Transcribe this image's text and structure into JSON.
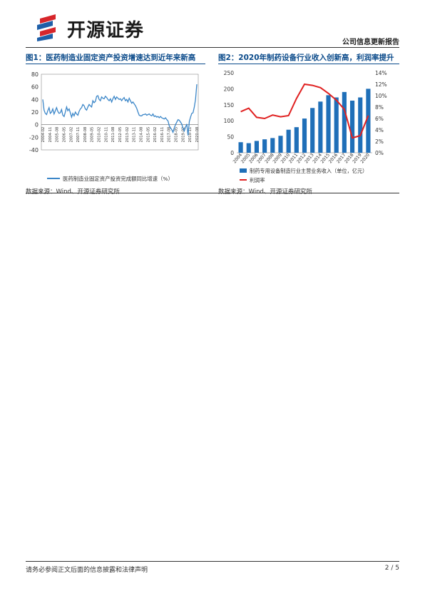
{
  "header": {
    "logo_text": "开源证券",
    "report_type": "公司信息更新报告"
  },
  "colors": {
    "brand_red": "#d7262b",
    "brand_blue": "#1f5fa8",
    "title_blue": "#0a4a8a",
    "line_blue": "#3b86c8",
    "bar_blue": "#1f6fb8",
    "profit_red": "#e02020"
  },
  "figure1": {
    "title": "图1：医药制造业固定资产投资增速达到近年来新高",
    "source": "数据来源：Wind、开源证券研究所",
    "chart_data": {
      "type": "line",
      "ylim": [
        -40,
        80
      ],
      "y_ticks": [
        "80",
        "60",
        "40",
        "20",
        "0",
        "-20",
        "-40"
      ],
      "x_tick_labels": [
        "2004-02",
        "2004-11",
        "2005-08",
        "2006-05",
        "2007-02",
        "2007-11",
        "2008-08",
        "2009-05",
        "2010-02",
        "2010-11",
        "2011-08",
        "2012-05",
        "2013-02",
        "2013-11",
        "2014-08",
        "2015-05",
        "2016-02",
        "2016-11",
        "2017-08",
        "2018-05",
        "2019-02",
        "2019-11",
        "2020-08"
      ],
      "series": [
        {
          "name": "医药制造业固定资产投资完成额同比增速（%）",
          "values": [
            40,
            23,
            18,
            16,
            22,
            27,
            18,
            20,
            25,
            17,
            22,
            27,
            21,
            18,
            19,
            24,
            15,
            13,
            20,
            28,
            22,
            25,
            19,
            12,
            18,
            14,
            20,
            17,
            15,
            21,
            25,
            27,
            32,
            30,
            25,
            23,
            28,
            32,
            30,
            28,
            38,
            35,
            37,
            45,
            46,
            40,
            38,
            44,
            42,
            41,
            45,
            43,
            40,
            38,
            41,
            36,
            41,
            45,
            40,
            44,
            42,
            40,
            41,
            38,
            41,
            43,
            38,
            40,
            36,
            42,
            38,
            34,
            36,
            33,
            30,
            26,
            20,
            15,
            14,
            14,
            16,
            16,
            17,
            15,
            16,
            17,
            15,
            14,
            17,
            13,
            14,
            12,
            13,
            11,
            13,
            11,
            10,
            9,
            11,
            8,
            6,
            -2,
            -5,
            -8,
            -12,
            -5,
            0,
            4,
            8,
            7,
            4,
            1,
            -6,
            -10,
            -4,
            1,
            -17,
            5,
            12,
            18,
            19,
            28,
            40,
            64
          ]
        }
      ]
    }
  },
  "figure2": {
    "title": "图2：2020年制药设备行业收入创新高，利润率提升",
    "source": "数据来源：Wind、开源证券研究所",
    "chart_data": {
      "type": "bar",
      "categories": [
        "2004",
        "2005",
        "2006",
        "2007",
        "2008",
        "2009",
        "2010",
        "2011",
        "2012",
        "2013",
        "2014",
        "2015",
        "2016",
        "2017",
        "2018",
        "2019",
        "2020"
      ],
      "ylim": [
        0,
        250
      ],
      "y2lim": [
        0,
        14
      ],
      "y_ticks": [
        "250",
        "200",
        "150",
        "100",
        "50",
        "0"
      ],
      "y2_ticks": [
        "14%",
        "12%",
        "10%",
        "8%",
        "6%",
        "4%",
        "2%",
        "0%"
      ],
      "series": [
        {
          "name": "制药专用设备制造行业主营业务收入（单位，亿元）",
          "type": "bar",
          "values": [
            33,
            30,
            37,
            42,
            46,
            53,
            72,
            80,
            107,
            140,
            160,
            180,
            173,
            190,
            163,
            173,
            200
          ]
        },
        {
          "name": "利润率",
          "type": "line",
          "axis": "right",
          "values": [
            7.2,
            7.8,
            6.2,
            6.0,
            6.6,
            6.3,
            6.5,
            9.5,
            12.0,
            11.8,
            11.4,
            10.4,
            9.2,
            7.6,
            2.6,
            3.0,
            6.5
          ]
        }
      ]
    }
  },
  "footer": {
    "disclaimer": "请务必参阅正文后面的信息披露和法律声明",
    "page": "2 / 5"
  }
}
